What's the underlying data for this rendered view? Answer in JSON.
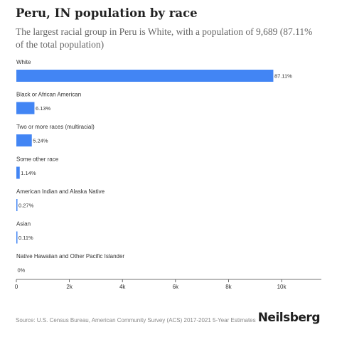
{
  "header": {
    "title": "Peru, IN population by race",
    "subtitle": "The largest racial group in Peru is White, with a population of 9,689 (87.11% of the total population)"
  },
  "footer": {
    "source": "Source: U.S. Census Bureau, American Community Survey (ACS) 2017-2021 5-Year Estimates",
    "brand": "Neilsberg"
  },
  "chart_data": {
    "type": "bar",
    "orientation": "horizontal",
    "categories": [
      "White",
      "Black or African American",
      "Two or more races (multiracial)",
      "Some other race",
      "American Indian and Alaska Native",
      "Asian",
      "Native Hawaiian and Other Pacific Islander"
    ],
    "values": [
      9689,
      682,
      583,
      127,
      30,
      12,
      0
    ],
    "data_labels": [
      "87.11%",
      "6.13%",
      "5.24%",
      "1.14%",
      "0.27%",
      "0.11%",
      "0%"
    ],
    "xlim": [
      0,
      11500
    ],
    "x_ticks": [
      0,
      2000,
      4000,
      6000,
      8000,
      10000
    ],
    "x_tick_labels": [
      "0",
      "2k",
      "4k",
      "6k",
      "8k",
      "10k"
    ],
    "bar_color": "#4285f4",
    "grid": false,
    "legend": "none"
  }
}
